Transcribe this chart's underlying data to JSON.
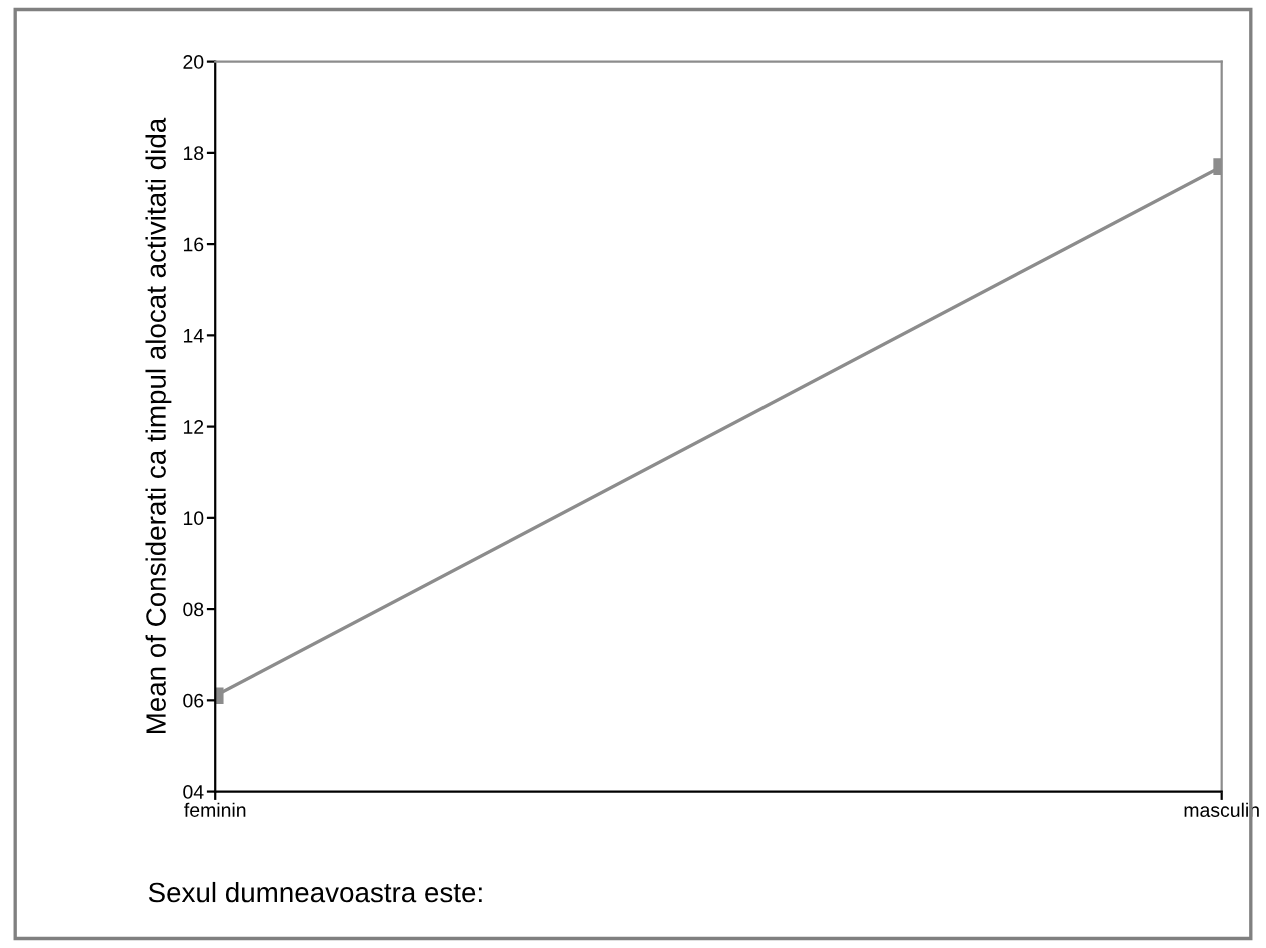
{
  "chart_data": {
    "type": "line",
    "xlabel": "Sexul dumneavoastra este:",
    "ylabel": "Mean of Considerati ca timpul alocat activitati dida",
    "categories": [
      "feminin",
      "masculin"
    ],
    "series": [
      {
        "color": "#8c8c8c",
        "values": [
          6.1,
          17.7
        ]
      }
    ],
    "ylim": [
      4,
      20
    ],
    "yticks": [
      {
        "value": 4,
        "label": "04"
      },
      {
        "value": 6,
        "label": "06"
      },
      {
        "value": 8,
        "label": "08"
      },
      10,
      12,
      14,
      16,
      18,
      20
    ],
    "marker": "square",
    "line_style": "solid"
  }
}
